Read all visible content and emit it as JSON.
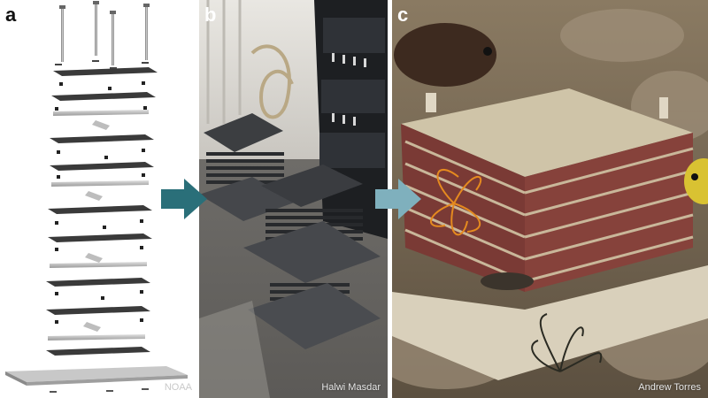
{
  "panels": [
    {
      "letter": "a",
      "credit": "NOAA"
    },
    {
      "letter": "b",
      "credit": "Halwi Masdar"
    },
    {
      "letter": "c",
      "credit": "Andrew Torres"
    }
  ],
  "colors": {
    "arrow": "#2a6f79",
    "arrow_light": "#7fb0bd"
  }
}
